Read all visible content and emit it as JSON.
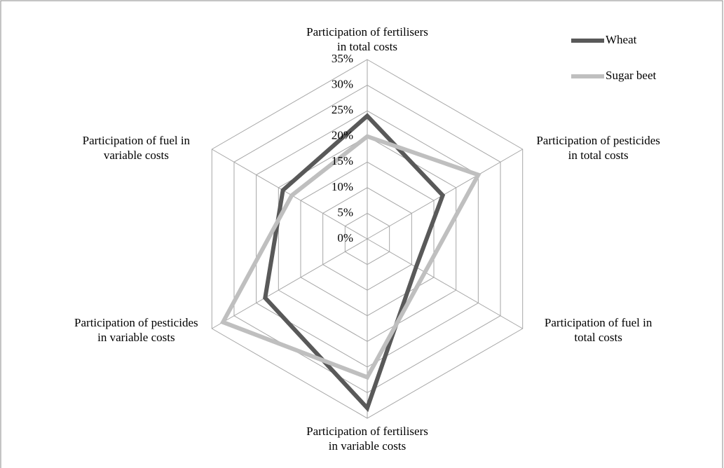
{
  "chart_data": {
    "type": "radar",
    "categories": [
      "Participation of fertilisers\nin total costs",
      "Participation of pesticides\nin total costs",
      "Participation of fuel in\ntotal costs",
      "Participation of fertilisers\nin variable costs",
      "Participation of pesticides\nin variable costs",
      "Participation of fuel in\nvariable costs"
    ],
    "series": [
      {
        "name": "Wheat",
        "color": "#595959",
        "values": [
          24,
          17,
          11,
          33,
          23,
          19
        ]
      },
      {
        "name": "Sugar beet",
        "color": "#bfbfbf",
        "values": [
          20,
          25,
          13,
          27,
          32.5,
          17
        ]
      }
    ],
    "ylim": [
      0,
      35
    ],
    "yticks": [
      {
        "value": 0,
        "label": "0%"
      },
      {
        "value": 5,
        "label": "5%"
      },
      {
        "value": 10,
        "label": "10%"
      },
      {
        "value": 15,
        "label": "15%"
      },
      {
        "value": 20,
        "label": "20%"
      },
      {
        "value": 25,
        "label": "25%"
      },
      {
        "value": 30,
        "label": "30%"
      },
      {
        "value": 35,
        "label": "35%"
      }
    ],
    "grid": true,
    "legend": "top-right"
  }
}
